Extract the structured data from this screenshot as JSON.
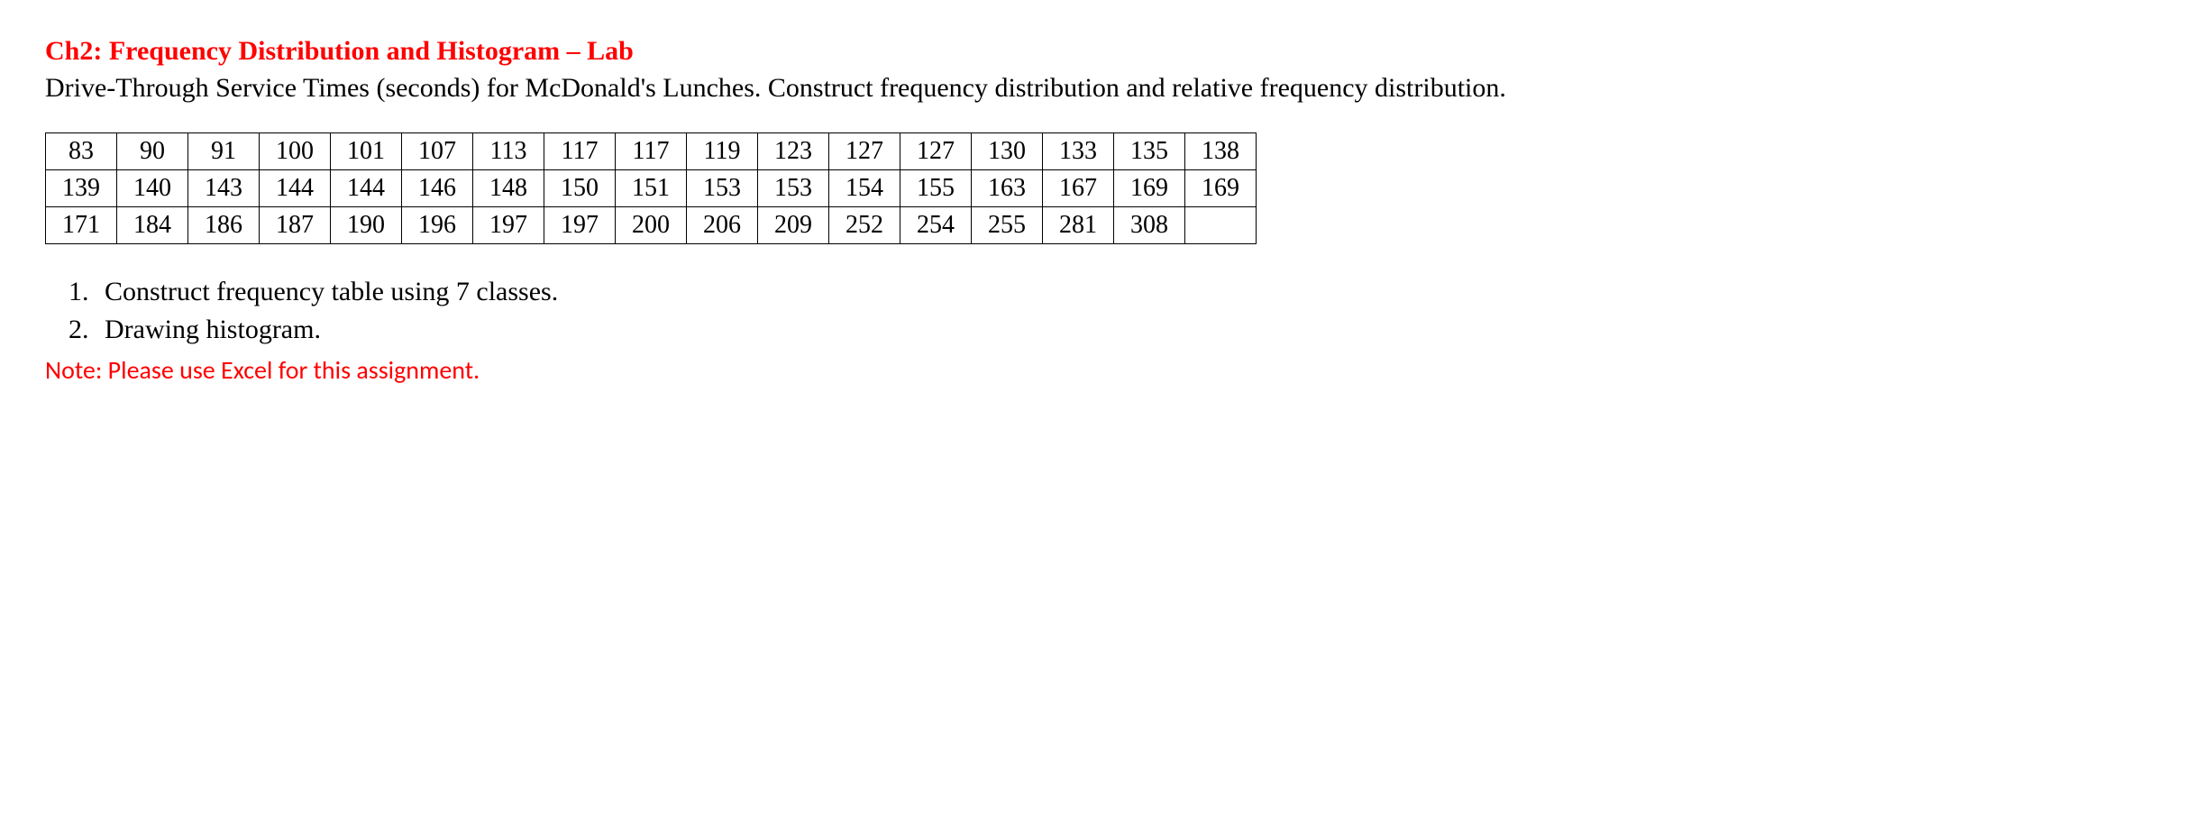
{
  "heading": {
    "title": "Ch2: Frequency Distribution and Histogram – Lab",
    "subtitle": "Drive-Through Service Times (seconds) for McDonald's Lunches. Construct frequency distribution and relative frequency distribution."
  },
  "table": {
    "type": "table",
    "columns_per_row": 17,
    "total_rows": 3,
    "border_color": "#000000",
    "background_color": "#ffffff",
    "font_size_pt": 21,
    "cell_align": "center",
    "rows": [
      [
        "83",
        "90",
        "91",
        "100",
        "101",
        "107",
        "113",
        "117",
        "117",
        "119",
        "123",
        "127",
        "127",
        "130",
        "133",
        "135",
        "138"
      ],
      [
        "139",
        "140",
        "143",
        "144",
        "144",
        "146",
        "148",
        "150",
        "151",
        "153",
        "153",
        "154",
        "155",
        "163",
        "167",
        "169",
        "169"
      ],
      [
        "171",
        "184",
        "186",
        "187",
        "190",
        "196",
        "197",
        "197",
        "200",
        "206",
        "209",
        "252",
        "254",
        "255",
        "281",
        "308",
        ""
      ]
    ]
  },
  "questions": {
    "items": [
      "Construct frequency table using 7 classes.",
      "Drawing histogram."
    ]
  },
  "note": "Note: Please use Excel for this assignment.",
  "colors": {
    "accent_red": "#ff0000",
    "text_black": "#000000",
    "background": "#ffffff"
  },
  "typography": {
    "body_font": "Georgia / Times New Roman serif",
    "note_font": "Calibri / sans-serif",
    "title_fontsize_pt": 22,
    "body_fontsize_pt": 22,
    "note_fontsize_pt": 21,
    "title_weight": "bold"
  }
}
